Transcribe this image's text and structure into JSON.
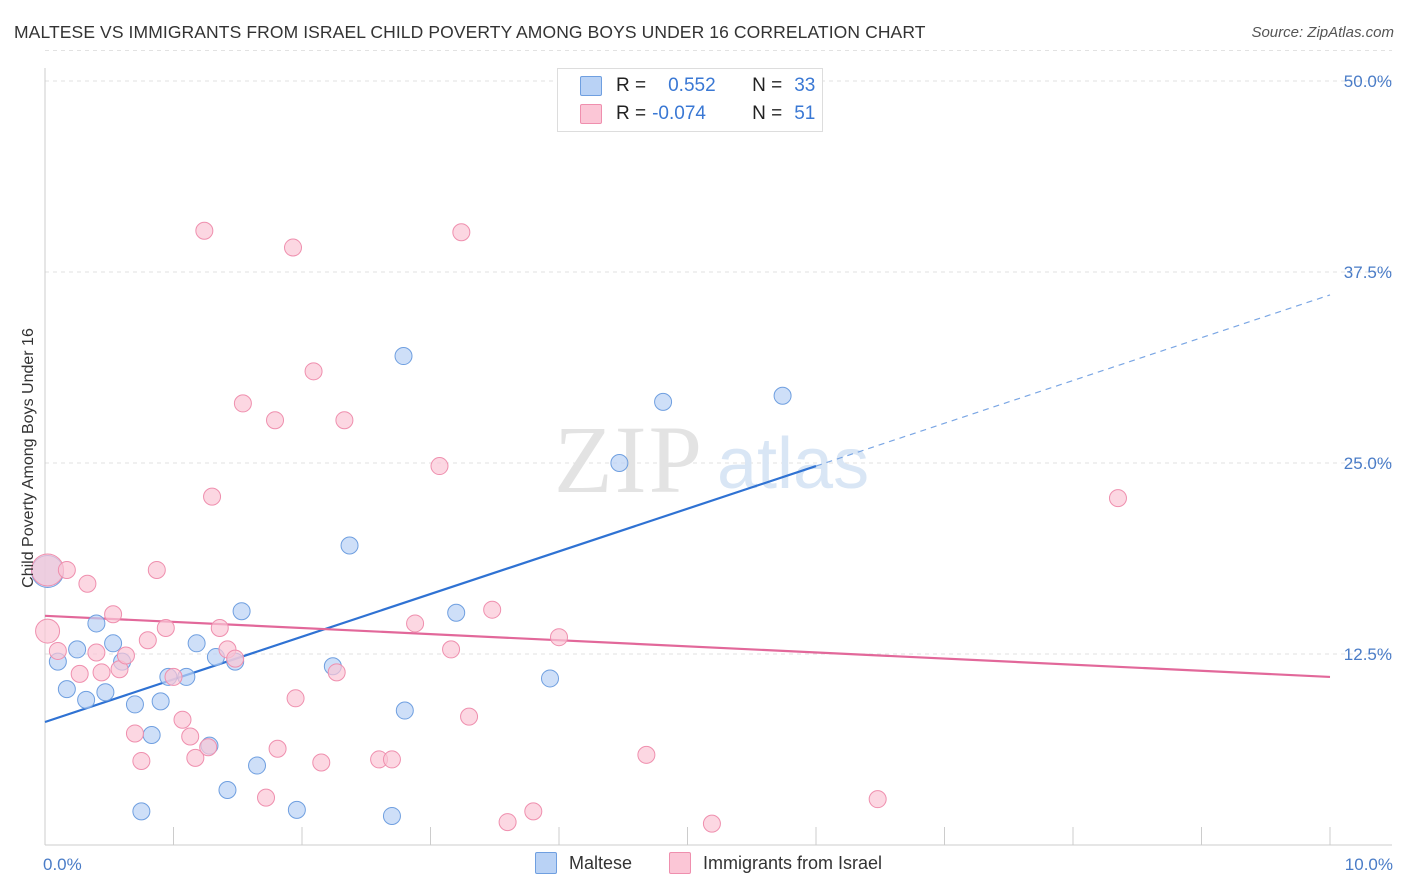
{
  "title": "MALTESE VS IMMIGRANTS FROM ISRAEL CHILD POVERTY AMONG BOYS UNDER 16 CORRELATION CHART",
  "source": "Source: ZipAtlas.com",
  "watermark": {
    "zip": "ZIP",
    "atlas": "atlas"
  },
  "legend": {
    "rows": [
      {
        "r_label": "R =",
        "r_value": "0.552",
        "n_label": "N =",
        "n_value": "33",
        "fill": "#b9d2f5",
        "stroke": "#6f9fe0"
      },
      {
        "r_label": "R =",
        "r_value": "-0.074",
        "n_label": "N =",
        "n_value": "51",
        "fill": "#fbc6d6",
        "stroke": "#ef8fae"
      }
    ]
  },
  "bottom_legend": [
    {
      "label": "Maltese",
      "fill": "#b9d2f5",
      "stroke": "#6f9fe0"
    },
    {
      "label": "Immigrants from Israel",
      "fill": "#fbc6d6",
      "stroke": "#ef8fae"
    }
  ],
  "chart_data": {
    "type": "scatter",
    "title": "MALTESE VS IMMIGRANTS FROM ISRAEL CHILD POVERTY AMONG BOYS UNDER 16 CORRELATION CHART",
    "xlabel": "",
    "ylabel": "Child Poverty Among Boys Under 16",
    "xlim": [
      0,
      10
    ],
    "ylim": [
      0,
      50
    ],
    "x_tick_labels": [
      "0.0%",
      "10.0%"
    ],
    "y_ticks": [
      {
        "value": 12.5,
        "label": "12.5%"
      },
      {
        "value": 25.0,
        "label": "25.0%"
      },
      {
        "value": 37.5,
        "label": "37.5%"
      },
      {
        "value": 50.0,
        "label": "50.0%"
      }
    ],
    "series": [
      {
        "name": "Maltese",
        "color": "#6f9fe0",
        "fill": "#b9d2f5",
        "points": [
          [
            0.02,
            17.9
          ],
          [
            0.1,
            12.0
          ],
          [
            0.17,
            10.2
          ],
          [
            0.25,
            12.8
          ],
          [
            0.32,
            9.5
          ],
          [
            0.4,
            14.5
          ],
          [
            0.47,
            10.0
          ],
          [
            0.53,
            13.2
          ],
          [
            0.6,
            12.0
          ],
          [
            0.7,
            9.2
          ],
          [
            0.75,
            2.2
          ],
          [
            0.83,
            7.2
          ],
          [
            0.9,
            9.4
          ],
          [
            0.96,
            11.0
          ],
          [
            1.1,
            11.0
          ],
          [
            1.18,
            13.2
          ],
          [
            1.28,
            6.5
          ],
          [
            1.33,
            12.3
          ],
          [
            1.42,
            3.6
          ],
          [
            1.48,
            12.0
          ],
          [
            1.53,
            15.3
          ],
          [
            1.65,
            5.2
          ],
          [
            1.96,
            2.3
          ],
          [
            2.24,
            11.7
          ],
          [
            2.37,
            19.6
          ],
          [
            2.79,
            32.0
          ],
          [
            2.7,
            1.9
          ],
          [
            2.8,
            8.8
          ],
          [
            3.2,
            15.2
          ],
          [
            3.93,
            10.9
          ],
          [
            4.47,
            25.0
          ],
          [
            4.81,
            29.0
          ],
          [
            5.74,
            29.4
          ]
        ],
        "trend": {
          "x0": 0.0,
          "y0": 8.05,
          "x1": 6.0,
          "y1": 24.8,
          "x_dash_end": 10.0,
          "y_dash_end": 36.0
        }
      },
      {
        "name": "Immigrants from Israel",
        "color": "#ef8fae",
        "fill": "#fbc6d6",
        "points": [
          [
            0.02,
            18.0
          ],
          [
            0.02,
            14.0
          ],
          [
            0.1,
            12.7
          ],
          [
            0.17,
            18.0
          ],
          [
            0.27,
            11.2
          ],
          [
            0.33,
            17.1
          ],
          [
            0.4,
            12.6
          ],
          [
            0.44,
            11.3
          ],
          [
            0.53,
            15.1
          ],
          [
            0.58,
            11.5
          ],
          [
            0.63,
            12.4
          ],
          [
            0.7,
            7.3
          ],
          [
            0.75,
            5.5
          ],
          [
            0.8,
            13.4
          ],
          [
            0.87,
            18.0
          ],
          [
            0.94,
            14.2
          ],
          [
            1.0,
            11.0
          ],
          [
            1.07,
            8.2
          ],
          [
            1.13,
            7.1
          ],
          [
            1.17,
            5.7
          ],
          [
            1.24,
            40.2
          ],
          [
            1.27,
            6.4
          ],
          [
            1.3,
            22.8
          ],
          [
            1.36,
            14.2
          ],
          [
            1.42,
            12.8
          ],
          [
            1.48,
            12.2
          ],
          [
            1.54,
            28.9
          ],
          [
            1.72,
            3.1
          ],
          [
            1.79,
            27.8
          ],
          [
            1.81,
            6.3
          ],
          [
            1.93,
            39.1
          ],
          [
            1.95,
            9.6
          ],
          [
            2.09,
            31.0
          ],
          [
            2.15,
            5.4
          ],
          [
            2.27,
            11.3
          ],
          [
            2.33,
            27.8
          ],
          [
            2.6,
            5.6
          ],
          [
            2.7,
            5.6
          ],
          [
            2.88,
            14.5
          ],
          [
            3.07,
            24.8
          ],
          [
            3.16,
            12.8
          ],
          [
            3.24,
            40.1
          ],
          [
            3.3,
            8.4
          ],
          [
            3.48,
            15.4
          ],
          [
            3.6,
            1.5
          ],
          [
            3.8,
            2.2
          ],
          [
            4.0,
            13.6
          ],
          [
            4.68,
            5.9
          ],
          [
            5.19,
            1.4
          ],
          [
            6.48,
            3.0
          ],
          [
            8.35,
            22.7
          ]
        ],
        "trend": {
          "x0": 0.0,
          "y0": 15.0,
          "x1": 10.0,
          "y1": 11.0
        }
      }
    ]
  }
}
